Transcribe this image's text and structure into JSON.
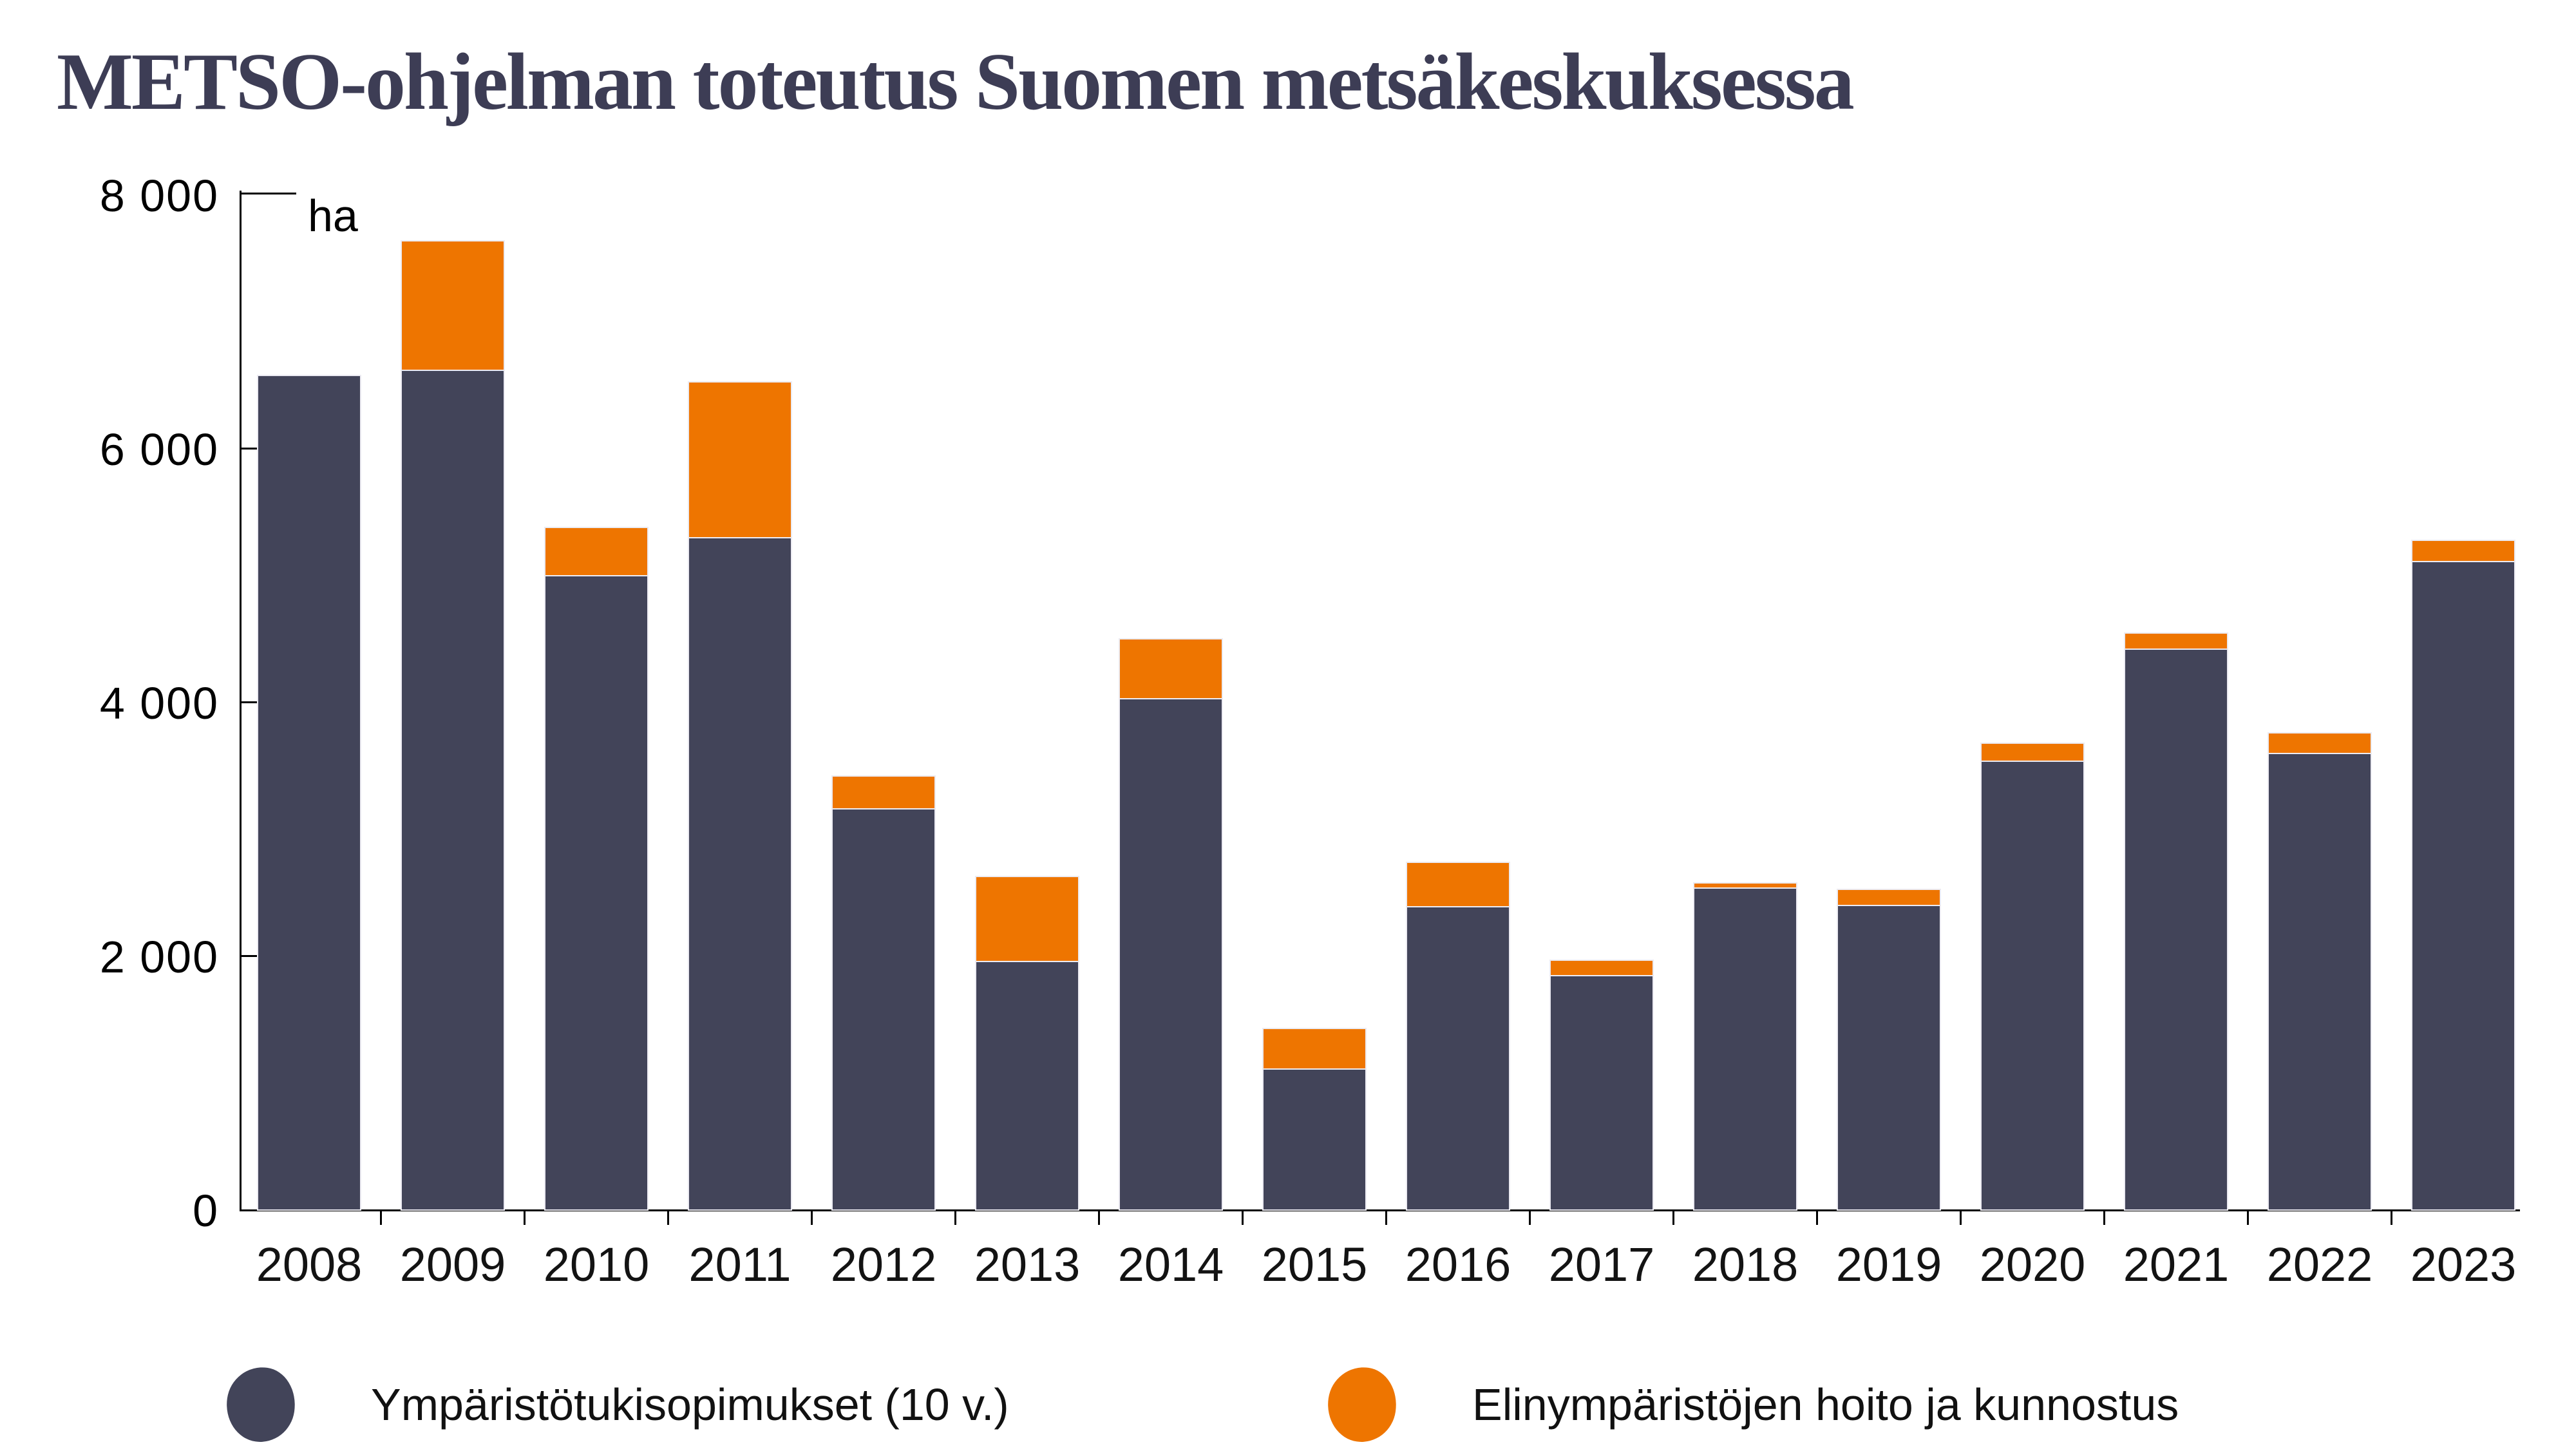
{
  "title": "METSO-ohjelman toteutus Suomen metsäkeskuksessa",
  "chart_data": {
    "type": "bar",
    "stacked": true,
    "title": "METSO-ohjelman toteutus Suomen metsäkeskuksessa",
    "unit_label": "ha",
    "xlabel": "",
    "ylabel": "ha",
    "ylim": [
      0,
      8000
    ],
    "grid": false,
    "legend_position": "bottom",
    "categories": [
      "2008",
      "2009",
      "2010",
      "2011",
      "2012",
      "2013",
      "2014",
      "2015",
      "2016",
      "2017",
      "2018",
      "2019",
      "2020",
      "2021",
      "2022",
      "2023"
    ],
    "series": [
      {
        "name": "Ympäristötukisopimukset (10 v.)",
        "color": "#424459",
        "values": [
          6570,
          6620,
          5000,
          5300,
          3160,
          1960,
          4030,
          1110,
          2390,
          1850,
          2540,
          2400,
          3540,
          4420,
          3600,
          5110
        ]
      },
      {
        "name": "Elinympäristöjen hoito ja kunnostus",
        "color": "#EE7500",
        "values": [
          0,
          1010,
          370,
          1220,
          250,
          660,
          460,
          310,
          340,
          110,
          30,
          120,
          130,
          120,
          150,
          160
        ]
      }
    ],
    "yticks": [
      {
        "value": 0,
        "label": "0"
      },
      {
        "value": 2000,
        "label": "2 000"
      },
      {
        "value": 4000,
        "label": "4 000"
      },
      {
        "value": 6000,
        "label": "6 000"
      },
      {
        "value": 8000,
        "label": "8 000"
      }
    ]
  },
  "colors": {
    "title": "#3D3D55",
    "axis": "#000000",
    "background": "#FFFFFF"
  }
}
